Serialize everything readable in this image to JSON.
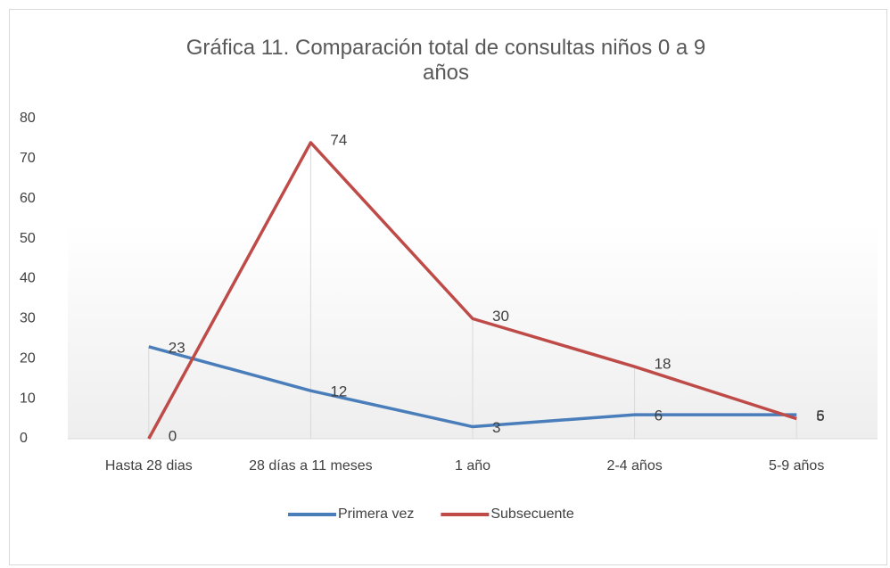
{
  "chart_data": {
    "type": "line",
    "title": "Gráfica 11. Comparación total de consultas niños 0 a 9 años",
    "categories": [
      "Hasta 28 dias",
      "28 días a 11 meses",
      "1 año",
      "2-4 años",
      "5-9 años"
    ],
    "series": [
      {
        "name": "Primera vez",
        "color": "#4a7ebb",
        "values": [
          23,
          12,
          3,
          6,
          6
        ]
      },
      {
        "name": "Subsecuente",
        "color": "#be4b48",
        "values": [
          0,
          74,
          30,
          18,
          5
        ]
      }
    ],
    "ylim": [
      0,
      80
    ],
    "yticks": [
      0,
      10,
      20,
      30,
      40,
      50,
      60,
      70,
      80
    ],
    "legend": "bottom"
  }
}
